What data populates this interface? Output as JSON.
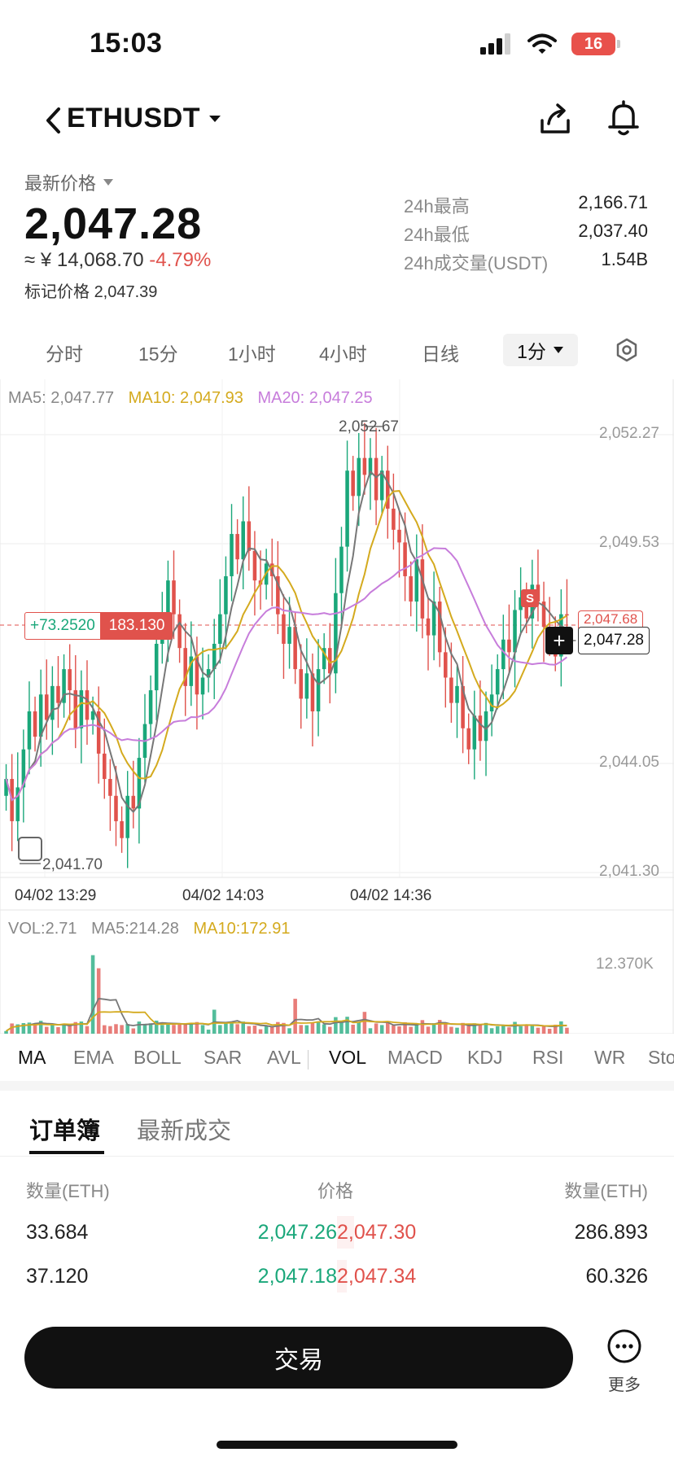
{
  "status_bar": {
    "time": "15:03",
    "battery": "16"
  },
  "nav": {
    "pair": "ETHUSDT",
    "icons": [
      "back-chevron-icon",
      "share-icon",
      "bell-icon"
    ]
  },
  "price": {
    "label": "最新价格",
    "last": "2,047.28",
    "cny": "≈ ¥ 14,068.70",
    "change": "-4.79%",
    "mark_label": "标记价格",
    "mark": "2,047.39"
  },
  "stats": [
    {
      "label": "24h最高",
      "value": "2,166.71"
    },
    {
      "label": "24h最低",
      "value": "2,037.40"
    },
    {
      "label": "24h成交量(USDT)",
      "value": "1.54B"
    }
  ],
  "intervals": {
    "items": [
      "分时",
      "15分",
      "1小时",
      "4小时",
      "日线"
    ],
    "active": "1分"
  },
  "chart": {
    "ma_legend": {
      "ma5": "MA5: 2,047.77",
      "ma10": "MA10: 2,047.93",
      "ma20": "MA20: 2,047.25"
    },
    "y_ticks": [
      "2,052.27",
      "2,049.53",
      "2,044.05",
      "2,041.30"
    ],
    "x_ticks": [
      "04/02 13:29",
      "04/02 14:03",
      "04/02 14:36"
    ],
    "high_label": "2,052.67",
    "low_label": "2,041.70",
    "pnl": "+73.2520",
    "position_qty": "183.130",
    "last_tag": "2,047.28",
    "red_tag": "2,047.68",
    "s_badge": "S",
    "plus": "+",
    "vol_legend": {
      "vol": "VOL:2.71",
      "ma5": "MA5:214.28",
      "ma10": "MA10:172.91"
    },
    "vol_tick": "12.370K",
    "colors": {
      "up": "#1aa77a",
      "down": "#e0524c",
      "ma5": "#777777",
      "ma10": "#d4aa1e",
      "ma20": "#c77ddb"
    }
  },
  "chart_data": {
    "type": "candlestick",
    "y_range": [
      2041.3,
      2052.67
    ],
    "y_ticks": [
      2052.27,
      2049.53,
      2044.05,
      2041.3
    ],
    "x_ticks": [
      "04/02 13:29",
      "04/02 14:03",
      "04/02 14:36"
    ],
    "high": 2052.67,
    "low": 2041.7,
    "last": 2047.28,
    "candles_close": [
      2043.4,
      2042.4,
      2043.2,
      2044.1,
      2045.0,
      2044.4,
      2045.4,
      2044.8,
      2045.6,
      2045.2,
      2046.0,
      2045.5,
      2044.6,
      2045.5,
      2044.8,
      2045.0,
      2044.0,
      2043.4,
      2043.0,
      2042.4,
      2042.0,
      2043.0,
      2042.7,
      2043.9,
      2044.7,
      2045.5,
      2046.6,
      2047.0,
      2048.1,
      2047.3,
      2046.5,
      2045.6,
      2046.3,
      2045.4,
      2045.8,
      2046.0,
      2046.6,
      2047.3,
      2048.2,
      2049.2,
      2048.6,
      2049.5,
      2048.8,
      2048.1,
      2048.0,
      2048.5,
      2048.2,
      2047.3,
      2046.6,
      2047.0,
      2046.0,
      2045.3,
      2045.9,
      2045.0,
      2046.0,
      2046.5,
      2045.9,
      2047.8,
      2048.9,
      2050.7,
      2050.1,
      2051.0,
      2050.6,
      2051.0,
      2050.0,
      2050.7,
      2049.8,
      2049.3,
      2049.0,
      2048.2,
      2047.6,
      2048.6,
      2047.2,
      2046.8,
      2047.6,
      2046.4,
      2045.8,
      2045.2,
      2045.6,
      2044.6,
      2044.1,
      2044.9,
      2044.3,
      2045.0,
      2045.4,
      2046.0,
      2046.7,
      2046.4,
      2047.4,
      2047.7,
      2047.2,
      2048.0,
      2047.6,
      2047.0,
      2046.9,
      2046.3,
      2047.3,
      2047.28
    ],
    "volume_peak": 12370
  },
  "indicators": {
    "items": [
      "MA",
      "EMA",
      "BOLL",
      "SAR",
      "AVL",
      "VOL",
      "MACD",
      "KDJ",
      "RSI",
      "WR",
      "StochRSI"
    ],
    "active_main": "MA",
    "active_sub": "VOL"
  },
  "order_book": {
    "tabs": [
      "订单簿",
      "最新成交"
    ],
    "headers": {
      "left": "数量(ETH)",
      "mid": "价格",
      "right": "数量(ETH)"
    },
    "rows": [
      {
        "bid_qty": "33.684",
        "bid": "2,047.26",
        "ask": "2,047.30",
        "ask_qty": "286.893",
        "ask_depth": 0.05
      },
      {
        "bid_qty": "37.120",
        "bid": "2,047.18",
        "ask": "2,047.34",
        "ask_qty": "60.326",
        "ask_depth": 0.03
      }
    ]
  },
  "bottom": {
    "trade": "交易",
    "more": "更多"
  }
}
